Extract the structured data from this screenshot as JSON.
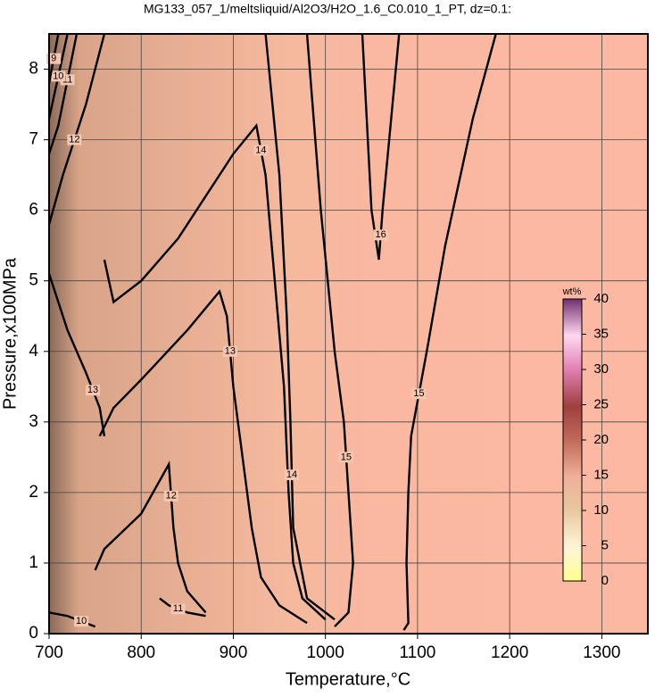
{
  "chart_data": {
    "type": "contour",
    "title": "MG133_057_1/meltsliquid/Al2O3/H2O_1.6_C0.010_1_PT, dz=0.1:",
    "x_label": "Temperature,°C",
    "y_label": "Pressure,x100MPa",
    "xlim": [
      700,
      1350
    ],
    "xticks": [
      700,
      800,
      900,
      1000,
      1100,
      1200,
      1300
    ],
    "ylim": [
      0,
      8.5
    ],
    "yticks": [
      0,
      1,
      2,
      3,
      4,
      5,
      6,
      7,
      8
    ],
    "grid": true,
    "contours": [
      {
        "level": 15,
        "temperature": [
          1085,
          1090,
          1088,
          1090,
          1093,
          1110,
          1130,
          1160,
          1185
        ],
        "pressure": [
          0.05,
          0.15,
          1,
          2,
          2.8,
          4,
          5.5,
          7.3,
          8.5
        ]
      },
      {
        "level": 15,
        "temperature": [
          1010,
          1025,
          1030,
          1025,
          1020,
          1010,
          995,
          980
        ],
        "pressure": [
          0.1,
          0.3,
          1,
          2,
          3,
          4,
          6,
          8.5
        ]
      },
      {
        "level": 16,
        "temperature": [
          1040,
          1050,
          1058,
          1062,
          1080
        ],
        "pressure": [
          8.5,
          6,
          5.3,
          6,
          8.5
        ]
      },
      {
        "level": 14,
        "temperature": [
          760,
          765,
          770,
          800,
          840,
          900,
          925,
          935,
          945,
          955,
          960,
          965,
          975,
          1000
        ],
        "pressure": [
          5.3,
          5.0,
          4.7,
          5.0,
          5.6,
          6.8,
          7.2,
          6.5,
          5.0,
          3.5,
          2.0,
          1.0,
          0.5,
          0.2
        ]
      },
      {
        "level": 14,
        "temperature": [
          935,
          950,
          958,
          962,
          965,
          980,
          1010
        ],
        "pressure": [
          8.5,
          6.5,
          4.5,
          3.0,
          1.5,
          0.5,
          0.2
        ]
      },
      {
        "level": 13,
        "temperature": [
          755,
          770,
          800,
          850,
          885,
          893,
          900,
          910,
          920,
          930,
          950,
          980
        ],
        "pressure": [
          2.8,
          3.2,
          3.6,
          4.3,
          4.85,
          4.5,
          3.5,
          2.5,
          1.5,
          0.8,
          0.4,
          0.15
        ]
      },
      {
        "level": 13,
        "temperature": [
          700,
          720,
          740,
          755,
          760
        ],
        "pressure": [
          5.1,
          4.3,
          3.7,
          3.2,
          2.8
        ]
      },
      {
        "level": 12,
        "temperature": [
          750,
          760,
          800,
          830,
          835,
          840,
          850,
          870
        ],
        "pressure": [
          0.9,
          1.2,
          1.7,
          2.4,
          1.5,
          1.0,
          0.6,
          0.3
        ]
      },
      {
        "level": 12,
        "temperature": [
          700,
          715,
          740,
          760
        ],
        "pressure": [
          5.8,
          6.5,
          7.5,
          8.5
        ]
      },
      {
        "level": 11,
        "temperature": [
          700,
          710,
          730
        ],
        "pressure": [
          6.8,
          7.2,
          8.5
        ]
      },
      {
        "level": 10,
        "temperature": [
          700,
          720
        ],
        "pressure": [
          7.3,
          8.5
        ]
      },
      {
        "level": 9,
        "temperature": [
          700,
          710
        ],
        "pressure": [
          7.8,
          8.5
        ]
      },
      {
        "level": 11,
        "temperature": [
          820,
          830,
          850,
          870
        ],
        "pressure": [
          0.5,
          0.4,
          0.3,
          0.25
        ]
      },
      {
        "level": 10,
        "temperature": [
          700,
          720,
          750
        ],
        "pressure": [
          0.3,
          0.25,
          0.1
        ]
      }
    ],
    "colorbar": {
      "label": "wt%",
      "lim": [
        0,
        40
      ],
      "ticks": [
        0,
        5,
        10,
        15,
        20,
        25,
        30,
        35,
        40
      ]
    }
  }
}
